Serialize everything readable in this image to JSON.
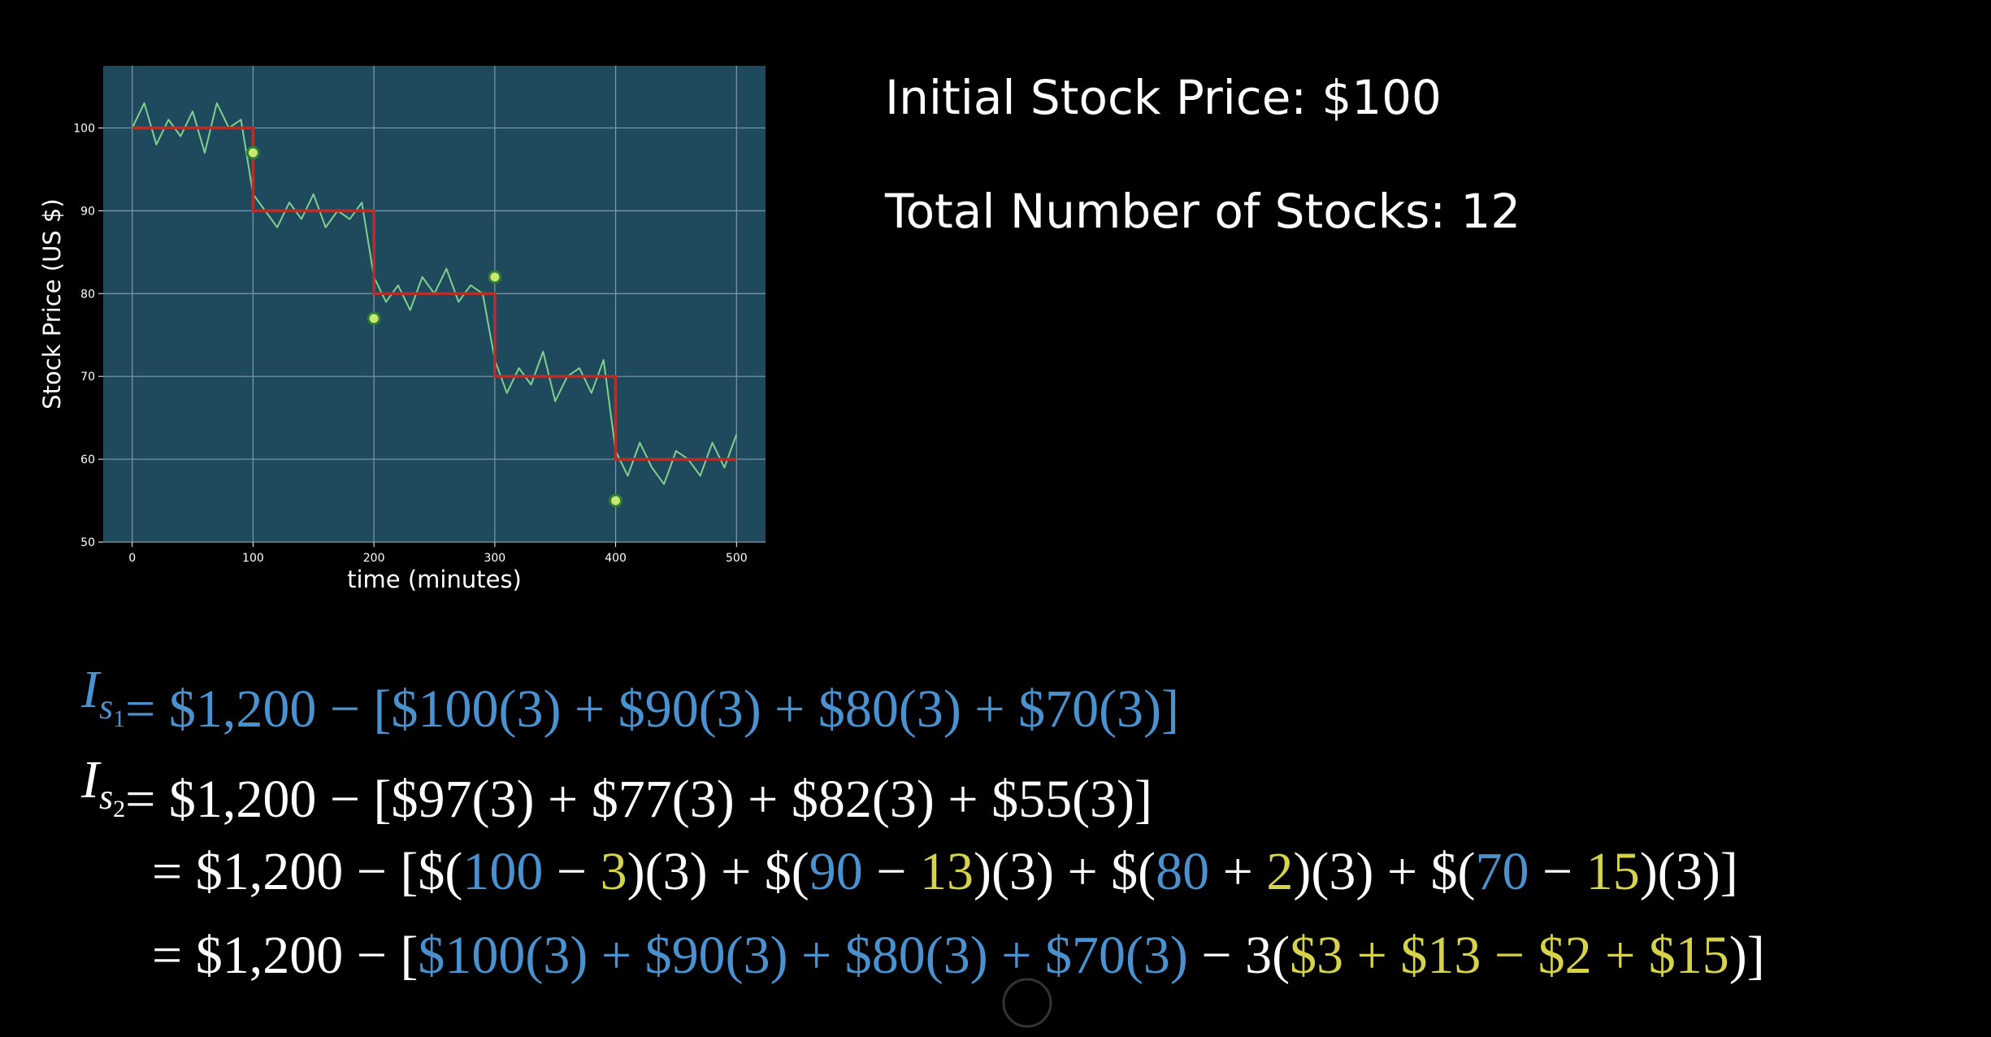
{
  "chart_data": {
    "type": "line",
    "xlabel": "time (minutes)",
    "ylabel": "Stock Price (US $)",
    "xlim": [
      -24,
      524
    ],
    "ylim": [
      50,
      107.5
    ],
    "xticks": [
      0,
      100,
      200,
      300,
      400,
      500
    ],
    "yticks": [
      50,
      60,
      70,
      80,
      90,
      100
    ],
    "grid": true,
    "background": "#1f4a5e",
    "series": [
      {
        "color": "#7fd08c",
        "style": "line",
        "x": [
          0,
          10,
          20,
          30,
          40,
          50,
          60,
          70,
          80,
          90,
          100,
          110,
          120,
          130,
          140,
          150,
          160,
          170,
          180,
          190,
          200,
          210,
          220,
          230,
          240,
          250,
          260,
          270,
          280,
          290,
          300,
          310,
          320,
          330,
          340,
          350,
          360,
          370,
          380,
          390,
          400,
          410,
          420,
          430,
          440,
          450,
          460,
          470,
          480,
          490,
          500
        ],
        "values": [
          100,
          103,
          98,
          101,
          99,
          102,
          97,
          103,
          100,
          101,
          92,
          90,
          88,
          91,
          89,
          92,
          88,
          90,
          89,
          91,
          82,
          79,
          81,
          78,
          82,
          80,
          83,
          79,
          81,
          80,
          72,
          68,
          71,
          69,
          73,
          67,
          70,
          71,
          68,
          72,
          61,
          58,
          62,
          59,
          57,
          61,
          60,
          58,
          62,
          59,
          63
        ]
      },
      {
        "color": "#b3302b",
        "style": "line",
        "x": [
          0,
          100,
          100,
          200,
          200,
          300,
          300,
          400,
          400,
          500
        ],
        "values": [
          100,
          100,
          90,
          90,
          80,
          80,
          70,
          70,
          60,
          60
        ]
      },
      {
        "color": "#c8ea6c",
        "style": "points",
        "x": [
          100,
          200,
          300,
          400
        ],
        "values": [
          97,
          77,
          82,
          55
        ]
      }
    ]
  },
  "info": [
    "Initial Stock Price: $100",
    "Total Number of Stocks: 12"
  ],
  "equations": [
    {
      "lhs": {
        "symbol": "I",
        "sub": "s",
        "subsub": "1",
        "color": "#4a92cf"
      },
      "segments": [
        {
          "text": "= $1,200 − [$100(3) + $90(3) + $80(3) + $70(3)]",
          "color": "#4a92cf"
        }
      ]
    },
    {
      "lhs": {
        "symbol": "I",
        "sub": "s",
        "subsub": "2",
        "color": "#ffffff"
      },
      "segments": [
        {
          "text": "= $1,200 − [$97(3) + $77(3) + $82(3) + $55(3)]",
          "color": "#ffffff"
        }
      ]
    },
    {
      "segments": [
        {
          "text": "= $1,200 − [$(",
          "color": "#ffffff"
        },
        {
          "text": "100",
          "color": "#4a92cf"
        },
        {
          "text": " − ",
          "color": "#ffffff"
        },
        {
          "text": "3",
          "color": "#d6d24a"
        },
        {
          "text": ")(3) + $(",
          "color": "#ffffff"
        },
        {
          "text": "90",
          "color": "#4a92cf"
        },
        {
          "text": " − ",
          "color": "#ffffff"
        },
        {
          "text": "13",
          "color": "#d6d24a"
        },
        {
          "text": ")(3) + $(",
          "color": "#ffffff"
        },
        {
          "text": "80",
          "color": "#4a92cf"
        },
        {
          "text": " + ",
          "color": "#ffffff"
        },
        {
          "text": "2",
          "color": "#d6d24a"
        },
        {
          "text": ")(3) + $(",
          "color": "#ffffff"
        },
        {
          "text": "70",
          "color": "#4a92cf"
        },
        {
          "text": " − ",
          "color": "#ffffff"
        },
        {
          "text": "15",
          "color": "#d6d24a"
        },
        {
          "text": ")(3)]",
          "color": "#ffffff"
        }
      ]
    },
    {
      "segments": [
        {
          "text": "= $1,200 − [",
          "color": "#ffffff"
        },
        {
          "text": "$100(3) + $90(3) + $80(3) + $70(3)",
          "color": "#4a92cf"
        },
        {
          "text": " − 3(",
          "color": "#ffffff"
        },
        {
          "text": "$3 + $13 − $2 + $15",
          "color": "#d6d24a"
        },
        {
          "text": ")]",
          "color": "#ffffff"
        }
      ]
    }
  ]
}
